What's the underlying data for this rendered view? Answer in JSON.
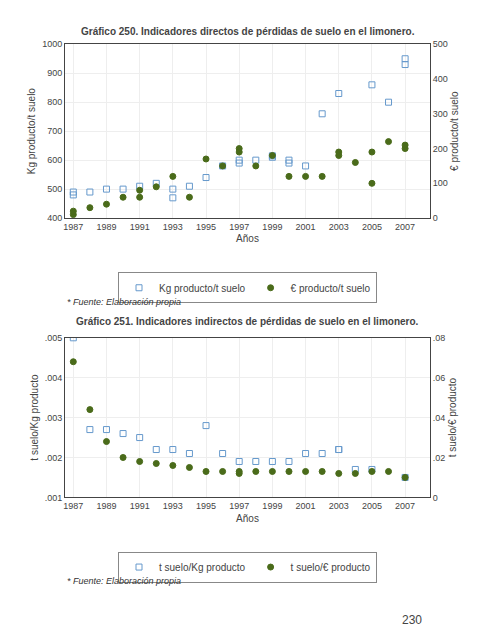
{
  "chart_data": [
    {
      "type": "scatter",
      "title": "Gráfico 250. Indicadores directos de pérdidas de suelo en el limonero.",
      "xlabel": "Años",
      "ylabel": "Kg producto/t suelo",
      "y2label": "€ producto/t suelo",
      "xlim": [
        1986.5,
        2008.5
      ],
      "xticks": [
        1987,
        1989,
        1991,
        1993,
        1995,
        1997,
        1999,
        2001,
        2003,
        2005,
        2007
      ],
      "ylim": [
        400,
        1000
      ],
      "yticks": [
        400,
        500,
        600,
        700,
        800,
        900,
        1000
      ],
      "y2lim": [
        0,
        500
      ],
      "y2ticks": [
        0,
        100,
        200,
        300,
        400,
        500
      ],
      "grid": true,
      "legend": "bottom",
      "annotations": [
        "* Fuente: Elaboración propia"
      ],
      "series": [
        {
          "name": "Kg producto/t suelo",
          "color": "#6699cc",
          "marker": "square-open",
          "x": [
            1987,
            1987,
            1988,
            1989,
            1990,
            1991,
            1992,
            1993,
            1993,
            1994,
            1995,
            1996,
            1997,
            1997,
            1998,
            1999,
            1999,
            2000,
            2000,
            2001,
            2002,
            2003,
            2005,
            2006,
            2007,
            2007
          ],
          "values": [
            480,
            490,
            490,
            500,
            500,
            510,
            520,
            470,
            500,
            510,
            540,
            580,
            590,
            600,
            600,
            615,
            610,
            590,
            600,
            580,
            760,
            830,
            860,
            800,
            950,
            930
          ]
        },
        {
          "name": "€ producto/t suelo",
          "color": "#4a6b1a",
          "marker": "circle",
          "axis": "y2",
          "x": [
            1987,
            1987,
            1988,
            1989,
            1990,
            1991,
            1991,
            1992,
            1993,
            1994,
            1995,
            1996,
            1997,
            1997,
            1998,
            1999,
            2000,
            2001,
            2002,
            2003,
            2003,
            2004,
            2005,
            2005,
            2006,
            2007,
            2007
          ],
          "values": [
            10,
            20,
            30,
            40,
            60,
            60,
            80,
            90,
            120,
            60,
            170,
            150,
            200,
            190,
            150,
            180,
            120,
            120,
            120,
            190,
            180,
            160,
            100,
            190,
            220,
            200,
            210
          ]
        }
      ]
    },
    {
      "type": "scatter",
      "title": "Gráfico 251. Indicadores indirectos de pérdidas de suelo en el limonero.",
      "xlabel": "Años",
      "ylabel": "t suelo/Kg producto",
      "y2label": "t suelo/€ producto",
      "xlim": [
        1986.5,
        2008.5
      ],
      "xticks": [
        1987,
        1989,
        1991,
        1993,
        1995,
        1997,
        1999,
        2001,
        2003,
        2005,
        2007
      ],
      "ylim": [
        0.001,
        0.005
      ],
      "yticks": [
        {
          "value": 0.001,
          "label": ".001"
        },
        {
          "value": 0.002,
          "label": ".002"
        },
        {
          "value": 0.003,
          "label": ".003"
        },
        {
          "value": 0.004,
          "label": ".004"
        },
        {
          "value": 0.005,
          "label": ".005"
        }
      ],
      "y2lim": [
        0,
        0.08
      ],
      "y2ticks": [
        0,
        {
          "value": 0.02,
          "label": ".02"
        },
        {
          "value": 0.04,
          "label": ".04"
        },
        {
          "value": 0.06,
          "label": ".06"
        },
        {
          "value": 0.08,
          "label": ".08"
        }
      ],
      "grid": true,
      "legend": "bottom",
      "annotations": [
        "* Fuente: Elaboración propia"
      ],
      "series": [
        {
          "name": "t suelo/Kg producto",
          "color": "#6699cc",
          "marker": "square-open",
          "x": [
            1987,
            1988,
            1989,
            1990,
            1991,
            1992,
            1993,
            1994,
            1995,
            1996,
            1997,
            1998,
            1999,
            2000,
            2001,
            2002,
            2003,
            2003,
            2004,
            2005,
            2007
          ],
          "values": [
            0.005,
            0.0027,
            0.0027,
            0.0026,
            0.0025,
            0.0022,
            0.0022,
            0.0021,
            0.0028,
            0.0021,
            0.0019,
            0.0019,
            0.0019,
            0.0019,
            0.0021,
            0.0021,
            0.0022,
            0.0022,
            0.0017,
            0.0017,
            0.0015
          ]
        },
        {
          "name": "t suelo/€ producto",
          "color": "#4a6b1a",
          "marker": "circle",
          "axis": "y2",
          "x": [
            1987,
            1988,
            1989,
            1990,
            1991,
            1992,
            1993,
            1994,
            1995,
            1996,
            1997,
            1997,
            1998,
            1999,
            2000,
            2001,
            2002,
            2003,
            2004,
            2005,
            2006,
            2007
          ],
          "values": [
            0.068,
            0.044,
            0.028,
            0.02,
            0.018,
            0.017,
            0.016,
            0.015,
            0.013,
            0.013,
            0.012,
            0.013,
            0.013,
            0.013,
            0.013,
            0.013,
            0.013,
            0.012,
            0.012,
            0.013,
            0.013,
            0.01
          ]
        }
      ]
    }
  ],
  "annotations": [
    "230"
  ]
}
